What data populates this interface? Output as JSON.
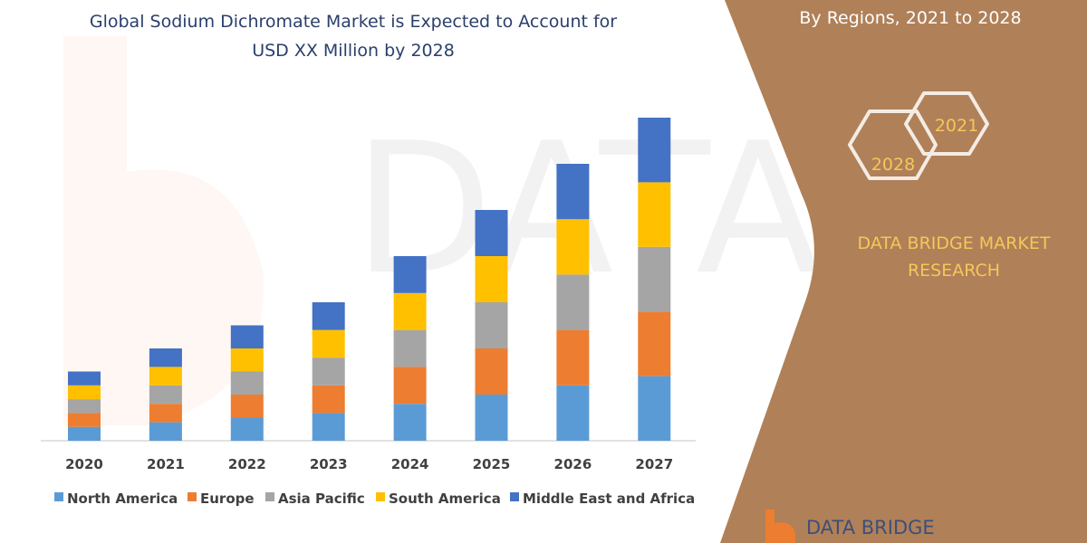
{
  "title_line1": "Global Sodium Dichromate Market is Expected to Account for",
  "title_line2": "USD XX Million by 2028",
  "side_panel": {
    "subtitle": "By Regions, 2021 to 2028",
    "hex_years": [
      "2028",
      "2021"
    ],
    "brand_line1": "DATA BRIDGE MARKET",
    "brand_line2": "RESEARCH",
    "logo_text": "DATA BRIDGE",
    "background_color": "#b08058"
  },
  "chart_data": {
    "type": "bar",
    "stacked": true,
    "categories": [
      "2020",
      "2021",
      "2022",
      "2023",
      "2024",
      "2025",
      "2026",
      "2027"
    ],
    "series": [
      {
        "name": "North America",
        "color": "#5b9bd5",
        "values": [
          15,
          20,
          25,
          30,
          40,
          50,
          60,
          70
        ]
      },
      {
        "name": "Europe",
        "color": "#ed7d31",
        "values": [
          15,
          20,
          25,
          30,
          40,
          50,
          60,
          70
        ]
      },
      {
        "name": "Asia Pacific",
        "color": "#a5a5a5",
        "values": [
          15,
          20,
          25,
          30,
          40,
          50,
          60,
          70
        ]
      },
      {
        "name": "South America",
        "color": "#ffc000",
        "values": [
          15,
          20,
          25,
          30,
          40,
          50,
          60,
          70
        ]
      },
      {
        "name": "Middle East and Africa",
        "color": "#4472c4",
        "values": [
          15,
          20,
          25,
          30,
          40,
          50,
          60,
          70
        ]
      }
    ],
    "ylim": [
      0,
      350
    ],
    "y_axis_shown": false,
    "grid": false,
    "legend_position": "bottom"
  }
}
